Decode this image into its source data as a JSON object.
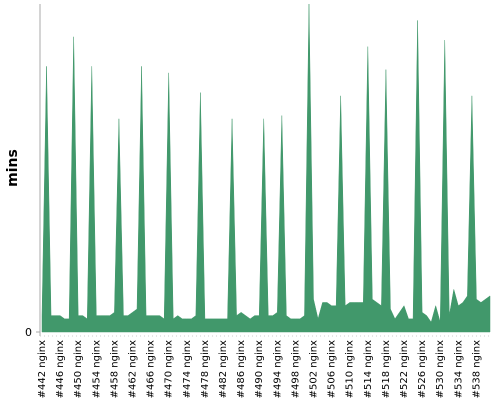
{
  "chart_data": {
    "type": "area",
    "y_label": "mins",
    "categories": [
      "#442 nginx",
      null,
      null,
      null,
      "#446 nginx",
      null,
      null,
      null,
      "#450 nginx",
      null,
      null,
      null,
      "#454 nginx",
      null,
      null,
      null,
      "#458 nginx",
      null,
      null,
      null,
      "#462 nginx",
      null,
      null,
      null,
      "#466 nginx",
      null,
      null,
      null,
      "#470 nginx",
      null,
      null,
      null,
      "#474 nginx",
      null,
      null,
      null,
      "#478 nginx",
      null,
      null,
      null,
      "#482 nginx",
      null,
      null,
      null,
      "#486 nginx",
      null,
      null,
      null,
      "#490 nginx",
      null,
      null,
      null,
      "#494 nginx",
      null,
      null,
      null,
      "#498 nginx",
      null,
      null,
      null,
      "#502 nginx",
      null,
      null,
      null,
      "#506 nginx",
      null,
      null,
      null,
      "#510 nginx",
      null,
      null,
      null,
      "#514 nginx",
      null,
      null,
      null,
      "#518 nginx",
      null,
      null,
      null,
      "#522 nginx",
      null,
      null,
      null,
      "#526 nginx",
      null,
      null,
      null,
      "#530 nginx",
      null,
      null,
      null,
      "#534 nginx",
      null,
      null,
      null,
      "#538 nginx",
      null,
      null,
      null
    ],
    "values": [
      5,
      81,
      5,
      5,
      5,
      4,
      4,
      90,
      5,
      5,
      4,
      81,
      5,
      5,
      5,
      5,
      6,
      65,
      5,
      5,
      6,
      7,
      81,
      5,
      5,
      5,
      5,
      4,
      79,
      4,
      5,
      4,
      4,
      4,
      5,
      73,
      4,
      4,
      4,
      4,
      4,
      4,
      65,
      5,
      6,
      5,
      4,
      5,
      5,
      65,
      5,
      5,
      6,
      66,
      5,
      4,
      4,
      4,
      5,
      100,
      10,
      4,
      9,
      9,
      8,
      8,
      72,
      8,
      9,
      9,
      9,
      9,
      87,
      10,
      9,
      8,
      80,
      7,
      4,
      6,
      8,
      4,
      4,
      95,
      6,
      5,
      3,
      8,
      3,
      89,
      5,
      13,
      8,
      9,
      11,
      72,
      10,
      9,
      10,
      11
    ],
    "color": "#41986b",
    "ylim": [
      0,
      100
    ],
    "yticks": [
      0
    ]
  }
}
